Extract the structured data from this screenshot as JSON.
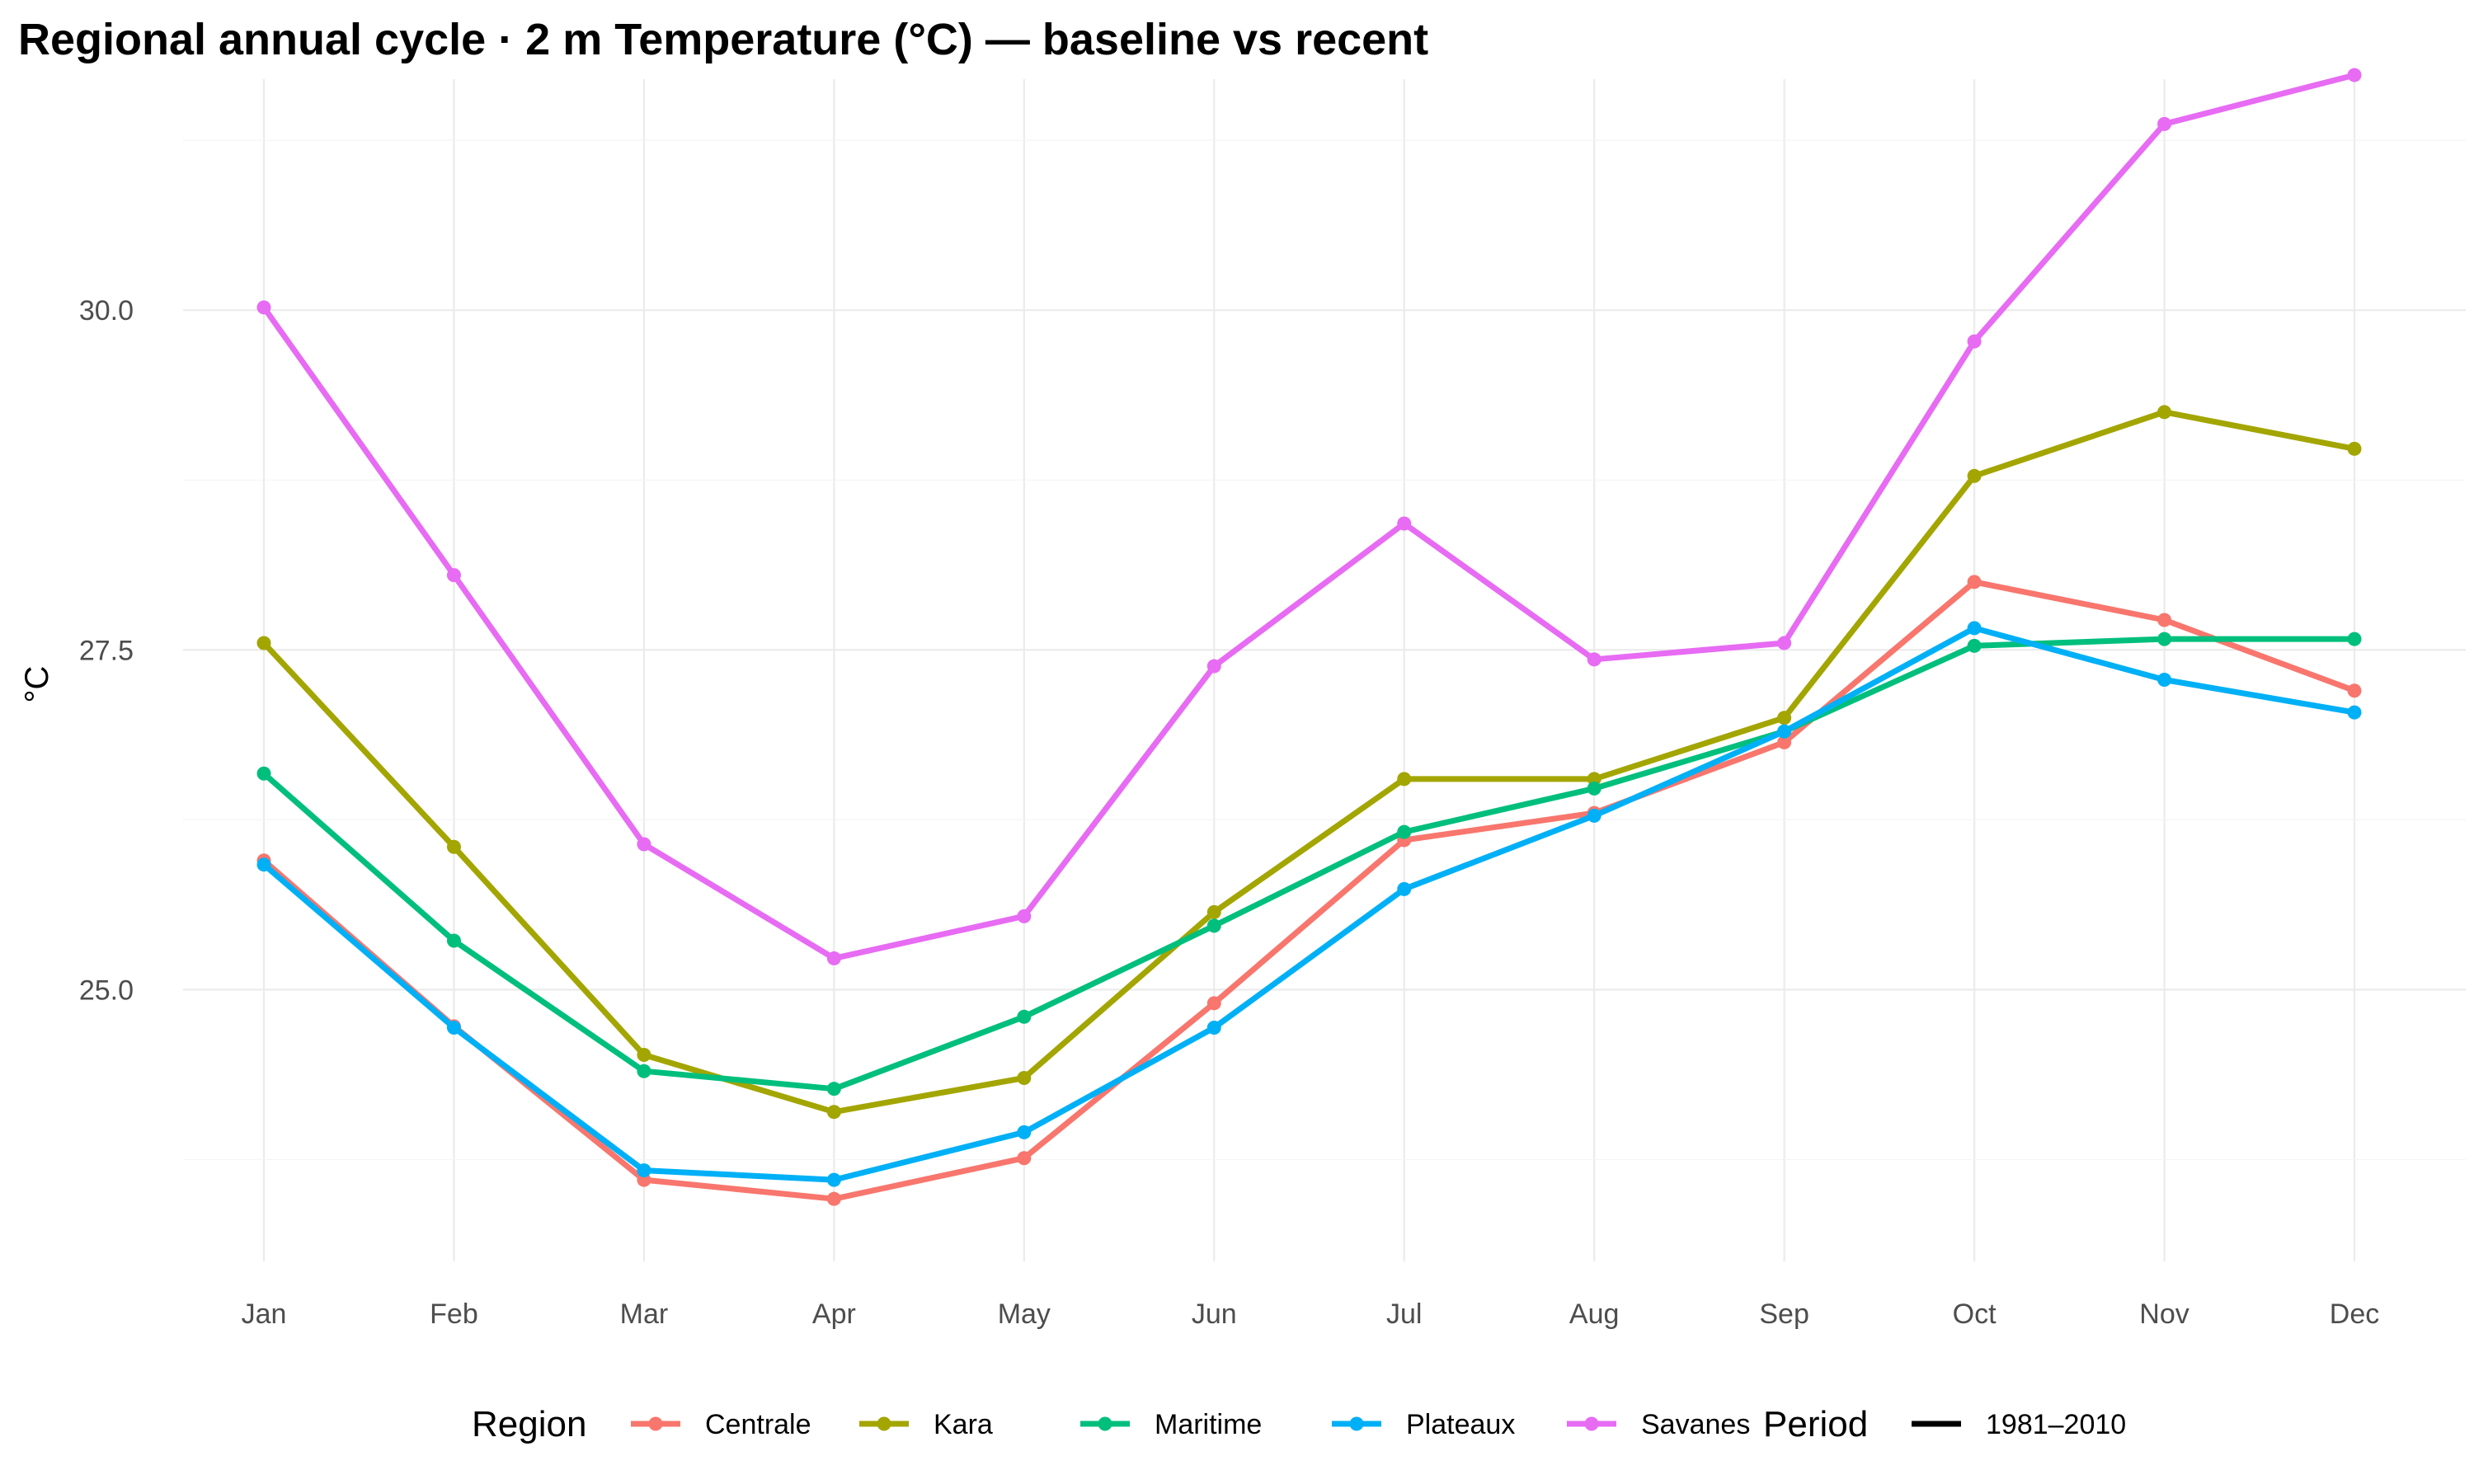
{
  "chart_data": {
    "type": "line",
    "title": "Regional annual cycle · 2 m Temperature (°C) — baseline vs recent",
    "xlabel": "",
    "ylabel": "°C",
    "categories": [
      "Jan",
      "Feb",
      "Mar",
      "Apr",
      "May",
      "Jun",
      "Jul",
      "Aug",
      "Sep",
      "Oct",
      "Nov",
      "Dec"
    ],
    "ylim": [
      23.0,
      31.7
    ],
    "yticks": [
      25.0,
      27.5,
      30.0
    ],
    "ytick_labels": [
      "25.0",
      "27.5",
      "30.0"
    ],
    "grid": true,
    "legend": {
      "placement": "bottom",
      "region_title": "Region",
      "period_title": "Period",
      "period_label": "1981–2010"
    },
    "series": [
      {
        "name": "Centrale",
        "color": "#F8766D",
        "values": [
          25.95,
          24.73,
          23.6,
          23.46,
          23.76,
          24.9,
          26.1,
          26.3,
          26.82,
          28.0,
          27.72,
          27.2
        ]
      },
      {
        "name": "Kara",
        "color": "#A3A500",
        "values": [
          27.55,
          26.05,
          24.52,
          24.1,
          24.35,
          25.57,
          26.55,
          26.55,
          27.0,
          28.78,
          29.25,
          28.98
        ]
      },
      {
        "name": "Maritime",
        "color": "#00BF7D",
        "values": [
          26.59,
          25.36,
          24.4,
          24.27,
          24.8,
          25.47,
          26.16,
          26.48,
          26.9,
          27.53,
          27.58,
          27.58
        ]
      },
      {
        "name": "Plateaux",
        "color": "#00B0F6",
        "values": [
          25.92,
          24.72,
          23.67,
          23.6,
          23.95,
          24.72,
          25.74,
          26.28,
          26.9,
          27.66,
          27.28,
          27.04
        ]
      },
      {
        "name": "Savanes",
        "color": "#E76BF3",
        "values": [
          30.02,
          28.05,
          26.07,
          25.23,
          25.54,
          27.38,
          28.43,
          27.43,
          27.55,
          29.77,
          31.37,
          31.73
        ]
      }
    ]
  }
}
